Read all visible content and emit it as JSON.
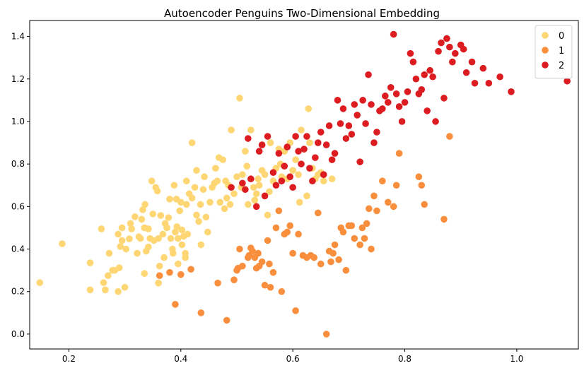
{
  "chart_data": {
    "type": "scatter",
    "title": "Autoencoder Penguins Two-Dimensional Embedding",
    "xlabel": "",
    "ylabel": "",
    "xlim": [
      0.13,
      1.11
    ],
    "ylim": [
      -0.07,
      1.475
    ],
    "x_ticks": [
      0.2,
      0.4,
      0.6,
      0.8,
      1.0
    ],
    "x_tick_labels": [
      "0.2",
      "0.4",
      "0.6",
      "0.8",
      "1.0"
    ],
    "y_ticks": [
      0.0,
      0.2,
      0.4,
      0.6,
      0.8,
      1.0,
      1.2,
      1.4
    ],
    "y_tick_labels": [
      "0.0",
      "0.2",
      "0.4",
      "0.6",
      "0.8",
      "1.0",
      "1.2",
      "1.4"
    ],
    "grid": false,
    "legend_position": "top-right",
    "series": [
      {
        "name": "0",
        "color": "#fed673",
        "points": [
          [
            0.148,
            0.242
          ],
          [
            0.188,
            0.425
          ],
          [
            0.238,
            0.208
          ],
          [
            0.238,
            0.335
          ],
          [
            0.258,
            0.495
          ],
          [
            0.262,
            0.242
          ],
          [
            0.265,
            0.208
          ],
          [
            0.27,
            0.275
          ],
          [
            0.272,
            0.38
          ],
          [
            0.278,
            0.3
          ],
          [
            0.282,
            0.3
          ],
          [
            0.288,
            0.2
          ],
          [
            0.288,
            0.47
          ],
          [
            0.29,
            0.312
          ],
          [
            0.292,
            0.412
          ],
          [
            0.295,
            0.44
          ],
          [
            0.295,
            0.5
          ],
          [
            0.3,
            0.22
          ],
          [
            0.302,
            0.4
          ],
          [
            0.308,
            0.448
          ],
          [
            0.31,
            0.52
          ],
          [
            0.312,
            0.495
          ],
          [
            0.318,
            0.552
          ],
          [
            0.322,
            0.38
          ],
          [
            0.325,
            0.458
          ],
          [
            0.328,
            0.45
          ],
          [
            0.33,
            0.54
          ],
          [
            0.332,
            0.585
          ],
          [
            0.335,
            0.5
          ],
          [
            0.335,
            0.285
          ],
          [
            0.336,
            0.61
          ],
          [
            0.338,
            0.39
          ],
          [
            0.342,
            0.41
          ],
          [
            0.342,
            0.495
          ],
          [
            0.345,
            0.45
          ],
          [
            0.348,
            0.72
          ],
          [
            0.35,
            0.565
          ],
          [
            0.352,
            0.44
          ],
          [
            0.355,
            0.69
          ],
          [
            0.358,
            0.673
          ],
          [
            0.36,
            0.45
          ],
          [
            0.36,
            0.24
          ],
          [
            0.362,
            0.32
          ],
          [
            0.364,
            0.558
          ],
          [
            0.368,
            0.47
          ],
          [
            0.37,
            0.36
          ],
          [
            0.372,
            0.52
          ],
          [
            0.375,
            0.5
          ],
          [
            0.378,
            0.548
          ],
          [
            0.38,
            0.635
          ],
          [
            0.382,
            0.45
          ],
          [
            0.385,
            0.4
          ],
          [
            0.386,
            0.38
          ],
          [
            0.388,
            0.7
          ],
          [
            0.39,
            0.48
          ],
          [
            0.392,
            0.635
          ],
          [
            0.393,
            0.505
          ],
          [
            0.395,
            0.45
          ],
          [
            0.395,
            0.33
          ],
          [
            0.398,
            0.58
          ],
          [
            0.4,
            0.62
          ],
          [
            0.402,
            0.42
          ],
          [
            0.402,
            0.49
          ],
          [
            0.405,
            0.46
          ],
          [
            0.408,
            0.38
          ],
          [
            0.408,
            0.36
          ],
          [
            0.41,
            0.72
          ],
          [
            0.41,
            0.61
          ],
          [
            0.412,
            0.47
          ],
          [
            0.415,
            0.66
          ],
          [
            0.42,
            0.9
          ],
          [
            0.42,
            0.64
          ],
          [
            0.425,
            0.69
          ],
          [
            0.428,
            0.77
          ],
          [
            0.428,
            0.56
          ],
          [
            0.432,
            0.53
          ],
          [
            0.435,
            0.61
          ],
          [
            0.436,
            0.42
          ],
          [
            0.44,
            0.68
          ],
          [
            0.442,
            0.74
          ],
          [
            0.445,
            0.55
          ],
          [
            0.448,
            0.48
          ],
          [
            0.452,
            0.62
          ],
          [
            0.456,
            0.69
          ],
          [
            0.46,
            0.71
          ],
          [
            0.462,
            0.78
          ],
          [
            0.465,
            0.72
          ],
          [
            0.468,
            0.83
          ],
          [
            0.47,
            0.62
          ],
          [
            0.475,
            0.82
          ],
          [
            0.478,
            0.59
          ],
          [
            0.48,
            0.72
          ],
          [
            0.482,
            0.64
          ],
          [
            0.485,
            0.7
          ],
          [
            0.488,
            0.61
          ],
          [
            0.49,
            0.96
          ],
          [
            0.495,
            0.66
          ],
          [
            0.5,
            0.74
          ],
          [
            0.505,
            1.11
          ],
          [
            0.508,
            0.69
          ],
          [
            0.51,
            0.75
          ],
          [
            0.515,
            0.86
          ],
          [
            0.518,
            0.79
          ],
          [
            0.52,
            0.61
          ],
          [
            0.525,
            0.96
          ],
          [
            0.53,
            0.69
          ],
          [
            0.532,
            0.63
          ],
          [
            0.535,
            0.66
          ],
          [
            0.538,
            0.73
          ],
          [
            0.54,
            0.7
          ],
          [
            0.545,
            0.77
          ],
          [
            0.55,
            0.75
          ],
          [
            0.555,
            0.56
          ],
          [
            0.558,
            0.67
          ],
          [
            0.56,
            0.9
          ],
          [
            0.565,
            0.72
          ],
          [
            0.57,
            0.78
          ],
          [
            0.575,
            0.87
          ],
          [
            0.578,
            0.8
          ],
          [
            0.58,
            0.74
          ],
          [
            0.585,
            0.86
          ],
          [
            0.59,
            0.73
          ],
          [
            0.595,
            0.9
          ],
          [
            0.6,
            0.77
          ],
          [
            0.605,
            0.82
          ],
          [
            0.61,
            0.75
          ],
          [
            0.612,
            0.62
          ],
          [
            0.615,
            0.96
          ],
          [
            0.62,
            0.87
          ],
          [
            0.625,
            0.65
          ],
          [
            0.628,
            1.06
          ],
          [
            0.63,
            0.9
          ],
          [
            0.635,
            0.78
          ],
          [
            0.64,
            0.73
          ],
          [
            0.645,
            0.75
          ],
          [
            0.65,
            0.76
          ],
          [
            0.655,
            0.72
          ],
          [
            0.67,
            0.73
          ]
        ]
      },
      {
        "name": "1",
        "color": "#f98e3d",
        "points": [
          [
            0.362,
            0.275
          ],
          [
            0.38,
            0.29
          ],
          [
            0.39,
            0.14
          ],
          [
            0.4,
            0.28
          ],
          [
            0.418,
            0.305
          ],
          [
            0.436,
            0.1
          ],
          [
            0.466,
            0.24
          ],
          [
            0.482,
            0.065
          ],
          [
            0.495,
            0.255
          ],
          [
            0.5,
            0.3
          ],
          [
            0.502,
            0.31
          ],
          [
            0.505,
            0.4
          ],
          [
            0.51,
            0.32
          ],
          [
            0.52,
            0.36
          ],
          [
            0.522,
            0.37
          ],
          [
            0.525,
            0.405
          ],
          [
            0.528,
            0.39
          ],
          [
            0.532,
            0.36
          ],
          [
            0.535,
            0.31
          ],
          [
            0.538,
            0.38
          ],
          [
            0.54,
            0.32
          ],
          [
            0.545,
            0.34
          ],
          [
            0.55,
            0.23
          ],
          [
            0.555,
            0.44
          ],
          [
            0.558,
            0.33
          ],
          [
            0.56,
            0.22
          ],
          [
            0.565,
            0.29
          ],
          [
            0.57,
            0.5
          ],
          [
            0.575,
            0.58
          ],
          [
            0.58,
            0.2
          ],
          [
            0.585,
            0.47
          ],
          [
            0.59,
            0.48
          ],
          [
            0.595,
            0.51
          ],
          [
            0.6,
            0.38
          ],
          [
            0.605,
            0.11
          ],
          [
            0.61,
            0.47
          ],
          [
            0.618,
            0.37
          ],
          [
            0.625,
            0.36
          ],
          [
            0.632,
            0.37
          ],
          [
            0.638,
            0.36
          ],
          [
            0.645,
            0.57
          ],
          [
            0.65,
            0.33
          ],
          [
            0.66,
            0.0
          ],
          [
            0.665,
            0.39
          ],
          [
            0.668,
            0.34
          ],
          [
            0.672,
            0.38
          ],
          [
            0.675,
            0.42
          ],
          [
            0.682,
            0.35
          ],
          [
            0.686,
            0.5
          ],
          [
            0.69,
            0.48
          ],
          [
            0.695,
            0.3
          ],
          [
            0.7,
            0.51
          ],
          [
            0.705,
            0.51
          ],
          [
            0.71,
            0.45
          ],
          [
            0.72,
            0.42
          ],
          [
            0.724,
            0.5
          ],
          [
            0.728,
            0.45
          ],
          [
            0.732,
            0.52
          ],
          [
            0.736,
            0.59
          ],
          [
            0.74,
            0.4
          ],
          [
            0.745,
            0.65
          ],
          [
            0.75,
            0.58
          ],
          [
            0.76,
            0.72
          ],
          [
            0.77,
            0.62
          ],
          [
            0.78,
            0.6
          ],
          [
            0.785,
            0.7
          ],
          [
            0.79,
            0.85
          ],
          [
            0.825,
            0.74
          ],
          [
            0.83,
            0.7
          ],
          [
            0.835,
            0.61
          ],
          [
            0.87,
            0.54
          ],
          [
            0.88,
            0.93
          ]
        ]
      },
      {
        "name": "2",
        "color": "#dd1c21",
        "points": [
          [
            0.49,
            0.69
          ],
          [
            0.51,
            0.71
          ],
          [
            0.515,
            0.68
          ],
          [
            0.52,
            0.92
          ],
          [
            0.525,
            0.73
          ],
          [
            0.535,
            0.6
          ],
          [
            0.54,
            0.86
          ],
          [
            0.545,
            0.89
          ],
          [
            0.55,
            0.65
          ],
          [
            0.555,
            0.93
          ],
          [
            0.565,
            0.76
          ],
          [
            0.57,
            0.7
          ],
          [
            0.575,
            0.85
          ],
          [
            0.58,
            0.72
          ],
          [
            0.585,
            0.79
          ],
          [
            0.59,
            0.88
          ],
          [
            0.595,
            0.74
          ],
          [
            0.6,
            0.69
          ],
          [
            0.605,
            0.93
          ],
          [
            0.61,
            0.86
          ],
          [
            0.615,
            0.8
          ],
          [
            0.62,
            0.87
          ],
          [
            0.625,
            0.93
          ],
          [
            0.63,
            0.78
          ],
          [
            0.635,
            0.72
          ],
          [
            0.64,
            0.83
          ],
          [
            0.645,
            0.9
          ],
          [
            0.65,
            0.95
          ],
          [
            0.655,
            0.75
          ],
          [
            0.66,
            0.89
          ],
          [
            0.665,
            0.98
          ],
          [
            0.67,
            0.82
          ],
          [
            0.675,
            0.85
          ],
          [
            0.68,
            1.1
          ],
          [
            0.685,
            0.99
          ],
          [
            0.69,
            1.06
          ],
          [
            0.695,
            0.92
          ],
          [
            0.7,
            0.98
          ],
          [
            0.705,
            0.94
          ],
          [
            0.71,
            1.08
          ],
          [
            0.715,
            1.03
          ],
          [
            0.72,
            0.81
          ],
          [
            0.725,
            1.1
          ],
          [
            0.73,
            0.99
          ],
          [
            0.735,
            1.22
          ],
          [
            0.74,
            1.08
          ],
          [
            0.745,
            0.9
          ],
          [
            0.75,
            0.95
          ],
          [
            0.755,
            1.05
          ],
          [
            0.76,
            1.06
          ],
          [
            0.765,
            1.12
          ],
          [
            0.77,
            1.09
          ],
          [
            0.775,
            1.16
          ],
          [
            0.78,
            1.41
          ],
          [
            0.785,
            1.13
          ],
          [
            0.79,
            1.07
          ],
          [
            0.795,
            1.0
          ],
          [
            0.8,
            1.09
          ],
          [
            0.805,
            1.14
          ],
          [
            0.81,
            1.32
          ],
          [
            0.815,
            1.28
          ],
          [
            0.82,
            1.2
          ],
          [
            0.825,
            1.13
          ],
          [
            0.83,
            1.15
          ],
          [
            0.835,
            1.22
          ],
          [
            0.84,
            1.05
          ],
          [
            0.845,
            1.24
          ],
          [
            0.85,
            1.21
          ],
          [
            0.855,
            1.0
          ],
          [
            0.86,
            1.33
          ],
          [
            0.865,
            1.37
          ],
          [
            0.87,
            1.11
          ],
          [
            0.875,
            1.39
          ],
          [
            0.88,
            1.35
          ],
          [
            0.885,
            1.28
          ],
          [
            0.89,
            1.32
          ],
          [
            0.9,
            1.36
          ],
          [
            0.905,
            1.34
          ],
          [
            0.91,
            1.23
          ],
          [
            0.92,
            1.28
          ],
          [
            0.925,
            1.18
          ],
          [
            0.94,
            1.25
          ],
          [
            0.95,
            1.18
          ],
          [
            0.97,
            1.21
          ],
          [
            0.99,
            1.14
          ],
          [
            1.09,
            1.19
          ]
        ]
      }
    ]
  }
}
